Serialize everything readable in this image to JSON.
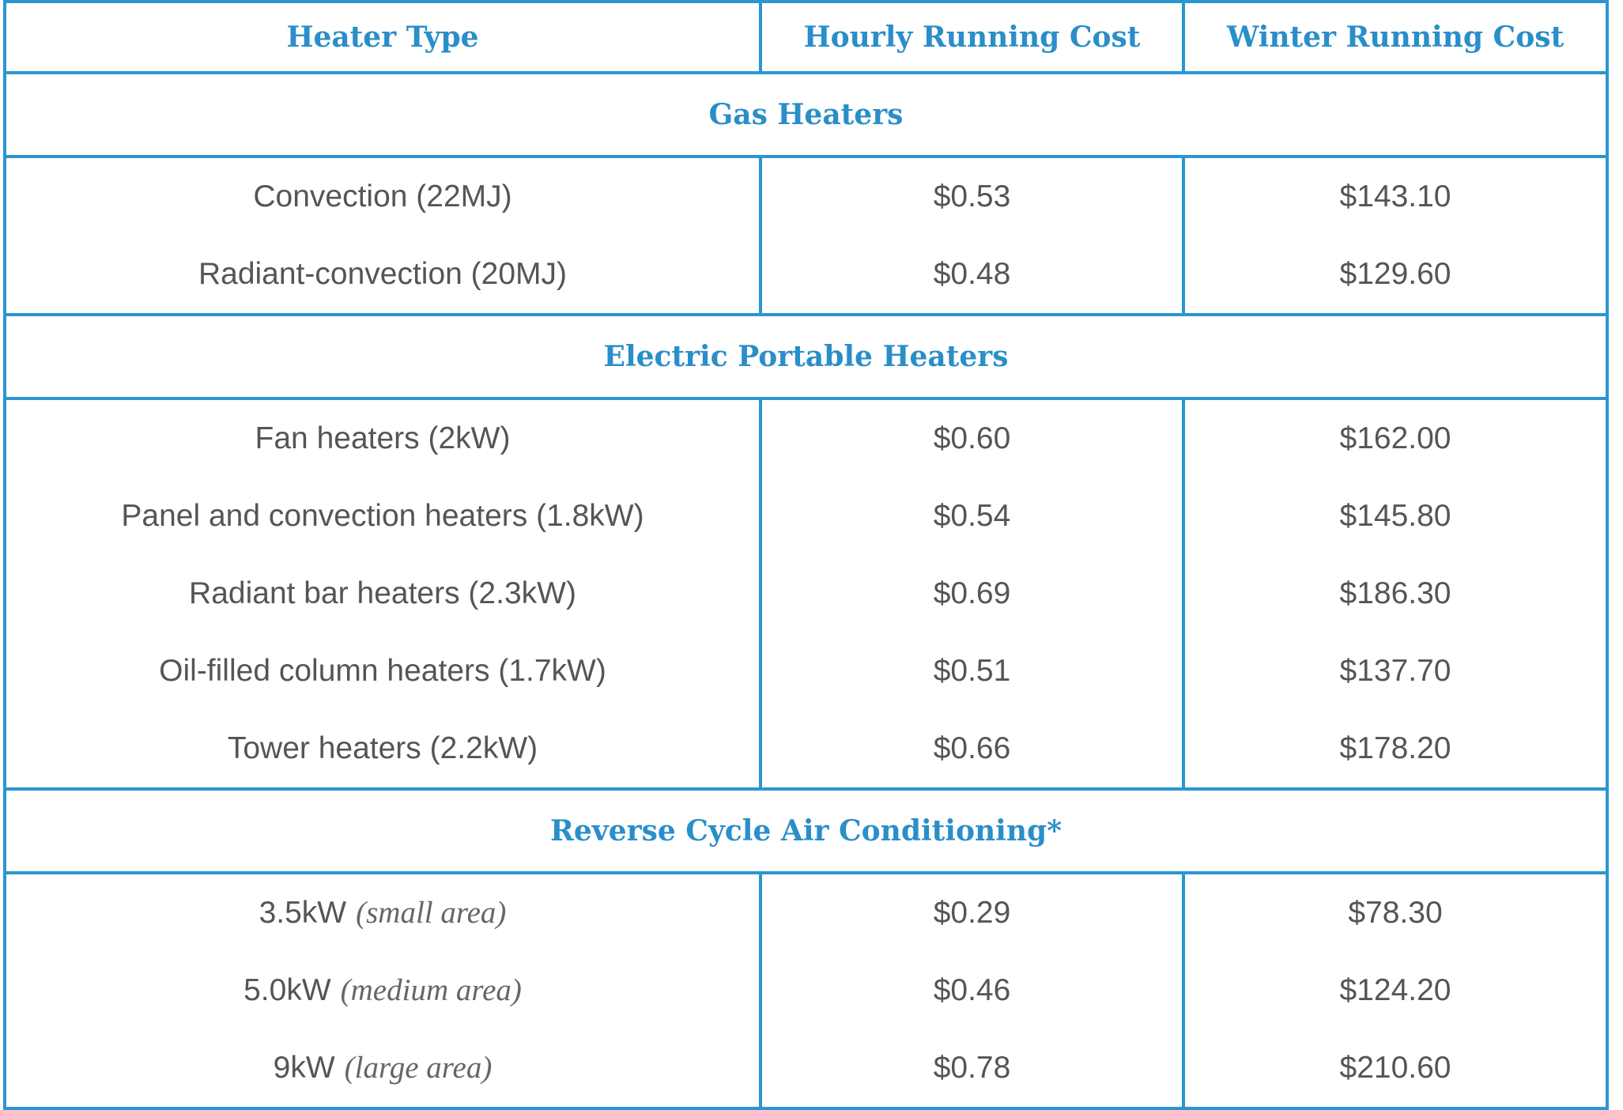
{
  "header": {
    "col1": "Heater Type",
    "col2": "Hourly Running Cost",
    "col3": "Winter Running Cost"
  },
  "sections": [
    {
      "title": "Gas Heaters",
      "types": [
        "Convection (22MJ)",
        "Radiant-convection (20MJ)"
      ],
      "hourly": [
        "$0.53",
        "$0.48"
      ],
      "winter": [
        "$143.10",
        "$129.60"
      ]
    },
    {
      "title": "Electric Portable Heaters",
      "types": [
        "Fan heaters (2kW)",
        "Panel and convection heaters (1.8kW)",
        "Radiant bar heaters (2.3kW)",
        "Oil-filled column heaters (1.7kW)",
        "Tower heaters (2.2kW)"
      ],
      "hourly": [
        "$0.60",
        "$0.54",
        "$0.69",
        "$0.51",
        "$0.66"
      ],
      "winter": [
        "$162.00",
        "$145.80",
        "$186.30",
        "$137.70",
        "$178.20"
      ]
    },
    {
      "title": "Reverse Cycle Air Conditioning*",
      "types": [
        "3.5kW",
        "5.0kW",
        "9kW"
      ],
      "type_notes": [
        "(small area)",
        "(medium area)",
        "(large area)"
      ],
      "hourly": [
        "$0.29",
        "$0.46",
        "$0.78"
      ],
      "winter": [
        "$78.30",
        "$124.20",
        "$210.60"
      ]
    }
  ],
  "colors": {
    "border": "#2a96d0",
    "heading": "#2a8ec9",
    "body_text": "#555555"
  }
}
